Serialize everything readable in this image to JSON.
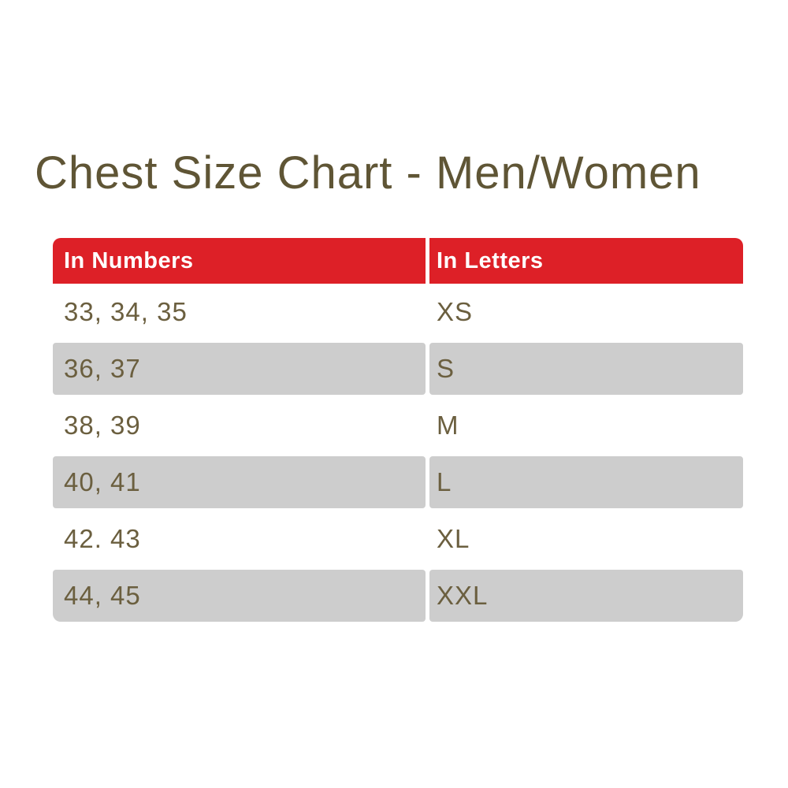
{
  "chart_data": {
    "type": "table",
    "title": "Chest Size Chart - Men/Women",
    "columns": [
      "In Numbers",
      "In Letters"
    ],
    "rows": [
      [
        "33, 34, 35",
        "XS"
      ],
      [
        "36, 37",
        "S"
      ],
      [
        "38, 39",
        "M"
      ],
      [
        "40, 41",
        "L"
      ],
      [
        "42. 43",
        "XL"
      ],
      [
        "44, 45",
        "XXL"
      ]
    ]
  },
  "colors": {
    "header_background": "#dd2027",
    "header_text": "#ffffff",
    "alt_row_background": "#cdcdcd",
    "title_text": "#5f5535",
    "cell_text": "#6b5f3f",
    "page_background": "#ffffff"
  }
}
